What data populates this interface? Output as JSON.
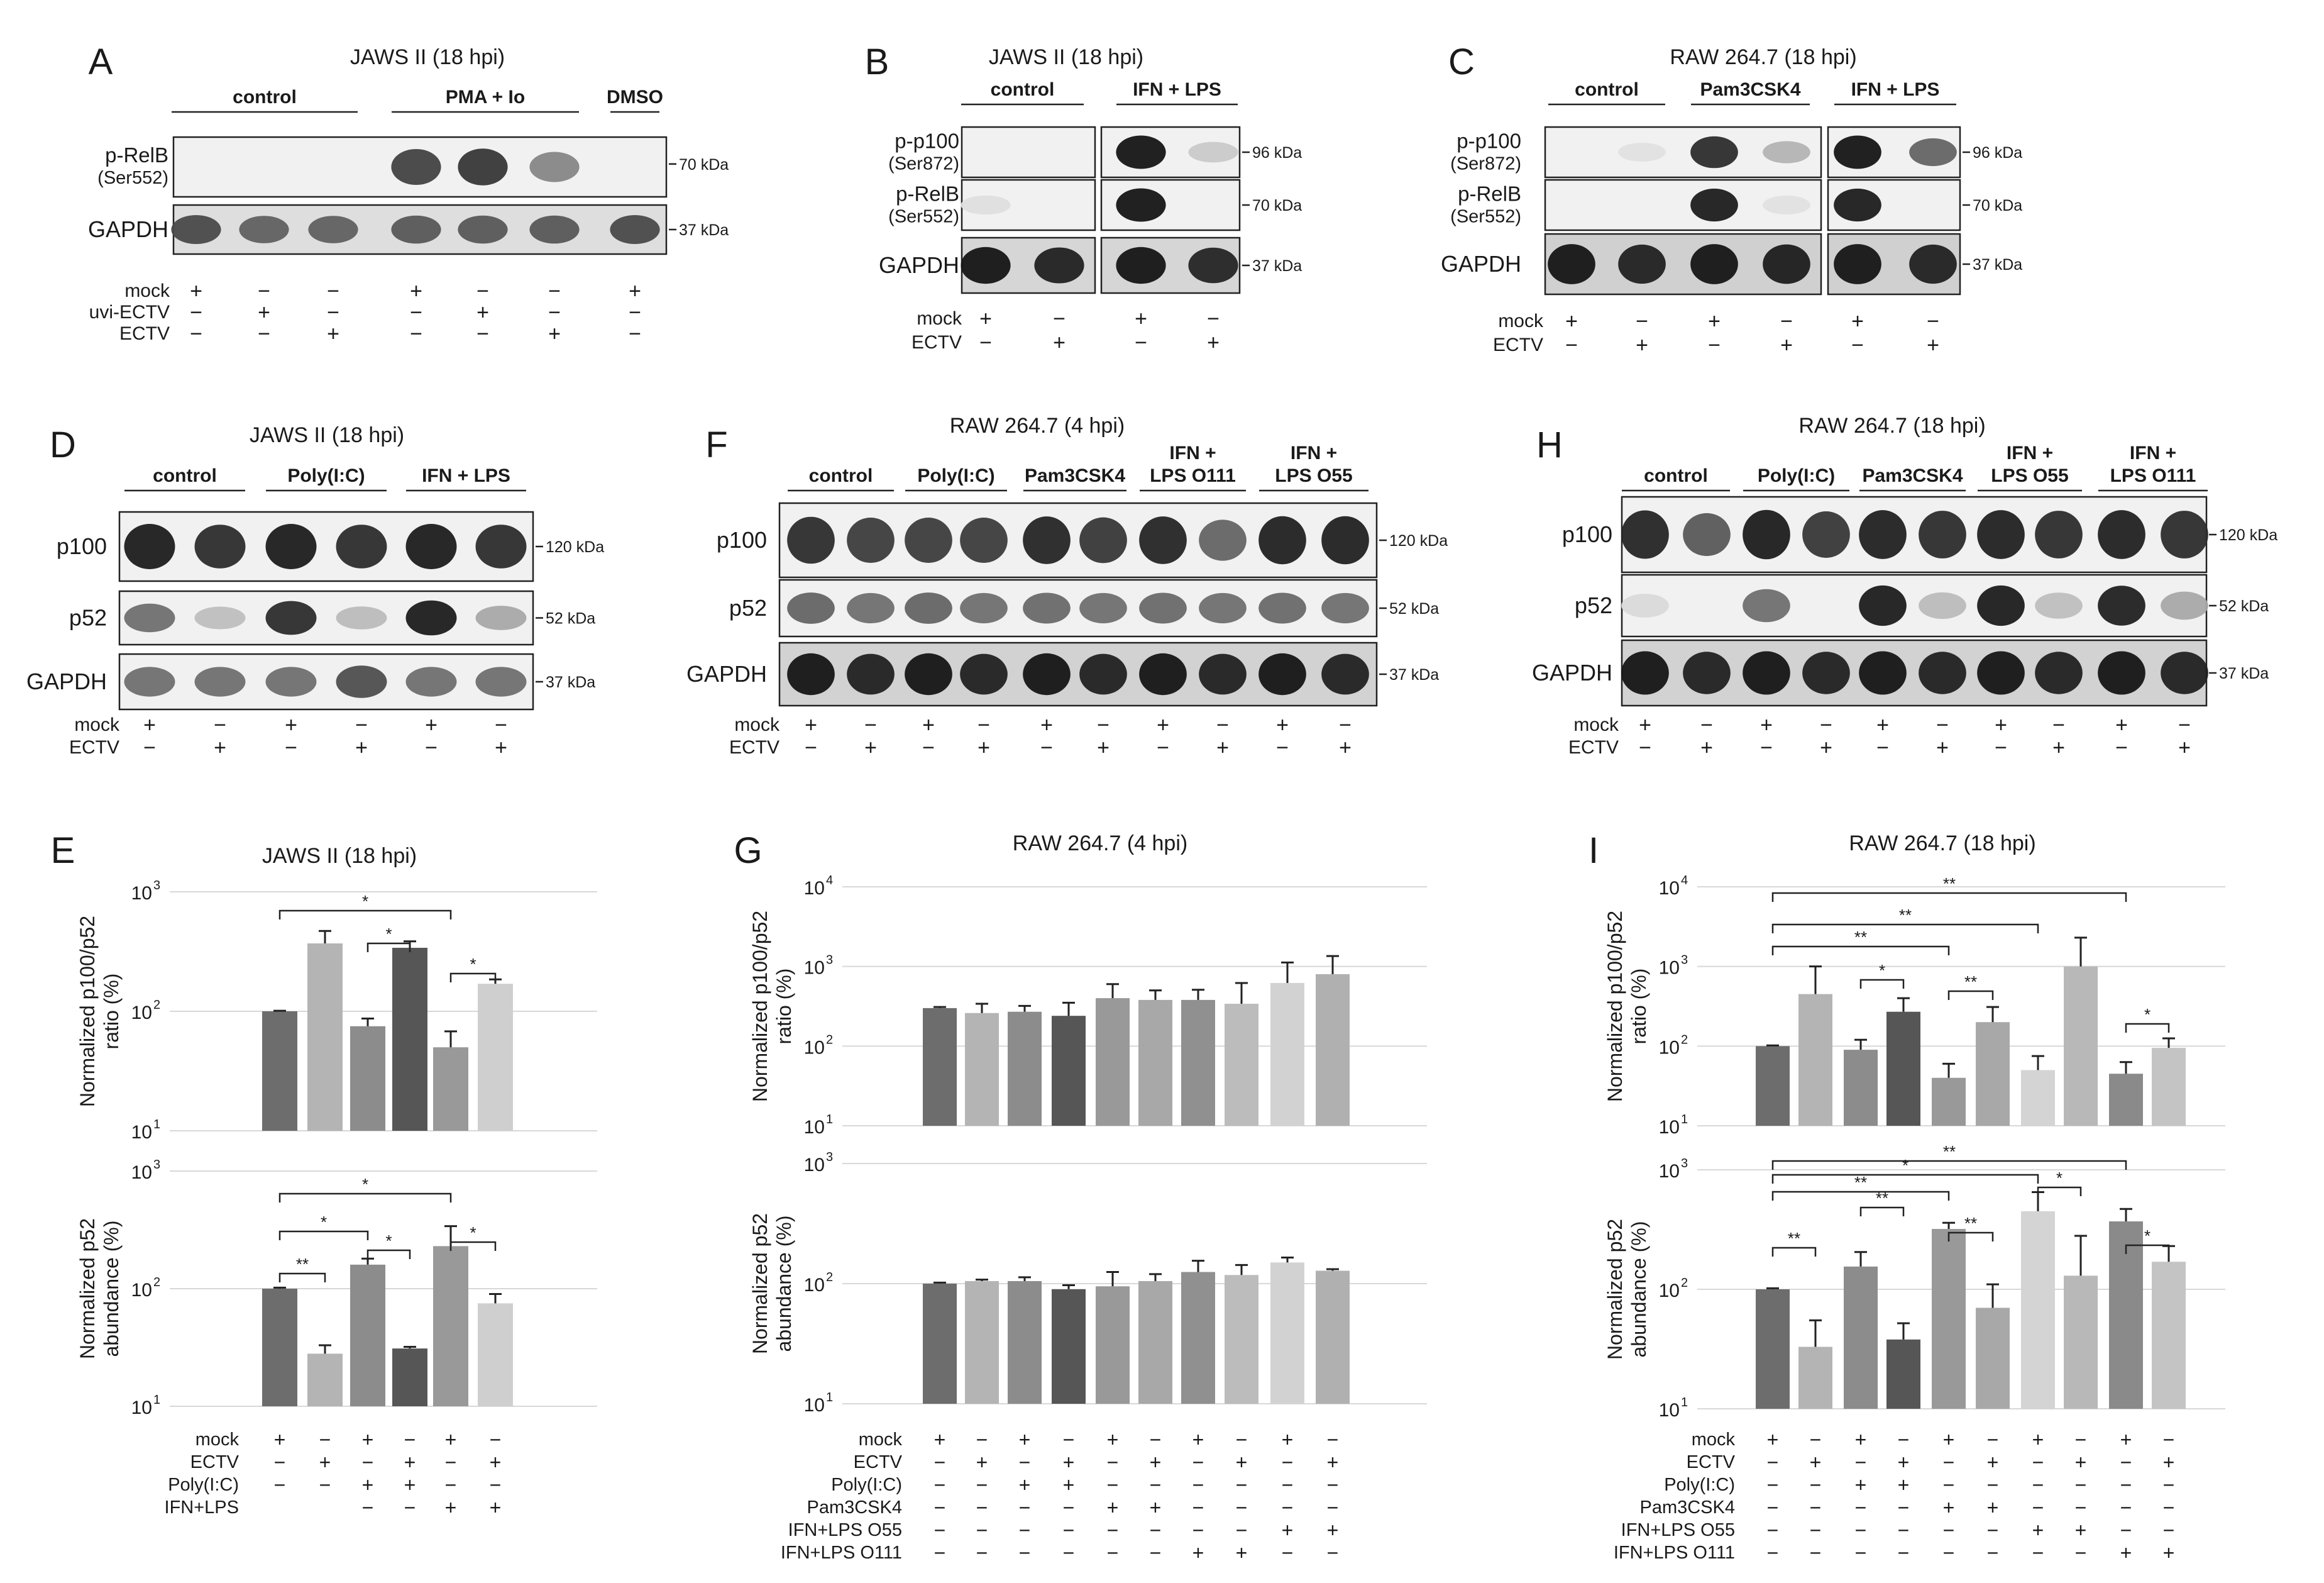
{
  "figure": {
    "panel_letters": [
      "A",
      "B",
      "C",
      "D",
      "E",
      "F",
      "G",
      "H",
      "I"
    ],
    "blots": {
      "A": {
        "title": "JAWS II (18 hpi)",
        "groups": [
          "control",
          "PMA + Io",
          "DMSO"
        ],
        "rows": [
          {
            "name": "p-RelB",
            "sub": "(Ser552)",
            "kda": "70 kDa"
          },
          {
            "name": "GAPDH",
            "sub": "",
            "kda": "37 kDa"
          }
        ],
        "cond_labels": [
          "mock",
          "uvi-ECTV",
          "ECTV"
        ],
        "cond_signs": [
          [
            "+",
            "−",
            "−",
            "+",
            "−",
            "−",
            "+"
          ],
          [
            "−",
            "+",
            "−",
            "−",
            "+",
            "−",
            "−"
          ],
          [
            "−",
            "−",
            "+",
            "−",
            "−",
            "+",
            "−"
          ]
        ]
      },
      "B": {
        "title": "JAWS II (18 hpi)",
        "groups": [
          "control",
          "IFN + LPS"
        ],
        "rows": [
          {
            "name": "p-p100",
            "sub": "(Ser872)",
            "kda": "96 kDa"
          },
          {
            "name": "p-RelB",
            "sub": "(Ser552)",
            "kda": "70 kDa"
          },
          {
            "name": "GAPDH",
            "sub": "",
            "kda": "37 kDa"
          }
        ],
        "cond_labels": [
          "mock",
          "ECTV"
        ],
        "cond_signs": [
          [
            "+",
            "−",
            "+",
            "−"
          ],
          [
            "−",
            "+",
            "−",
            "+"
          ]
        ]
      },
      "C": {
        "title": "RAW 264.7 (18 hpi)",
        "groups": [
          "control",
          "Pam3CSK4",
          "IFN + LPS"
        ],
        "rows": [
          {
            "name": "p-p100",
            "sub": "(Ser872)",
            "kda": "96 kDa"
          },
          {
            "name": "p-RelB",
            "sub": "(Ser552)",
            "kda": "70 kDa"
          },
          {
            "name": "GAPDH",
            "sub": "",
            "kda": "37 kDa"
          }
        ],
        "cond_labels": [
          "mock",
          "ECTV"
        ],
        "cond_signs": [
          [
            "+",
            "−",
            "+",
            "−",
            "+",
            "−"
          ],
          [
            "−",
            "+",
            "−",
            "+",
            "−",
            "+"
          ]
        ]
      },
      "D": {
        "title": "JAWS II (18 hpi)",
        "groups": [
          "control",
          "Poly(I:C)",
          "IFN + LPS"
        ],
        "rows": [
          {
            "name": "p100",
            "kda": "120 kDa"
          },
          {
            "name": "p52",
            "kda": "52 kDa"
          },
          {
            "name": "GAPDH",
            "kda": "37 kDa"
          }
        ],
        "cond_labels": [
          "mock",
          "ECTV"
        ],
        "cond_signs": [
          [
            "+",
            "−",
            "+",
            "−",
            "+",
            "−"
          ],
          [
            "−",
            "+",
            "−",
            "+",
            "−",
            "+"
          ]
        ]
      },
      "F": {
        "title": "RAW 264.7 (4 hpi)",
        "groups": [
          "control",
          "Poly(I:C)",
          "Pam3CSK4",
          "IFN + LPS O111",
          "IFN + LPS O55"
        ],
        "group_line1": [
          "",
          "",
          "",
          "IFN +",
          "IFN +"
        ],
        "group_line2": [
          "control",
          "Poly(I:C)",
          "Pam3CSK4",
          "LPS O111",
          "LPS O55"
        ],
        "rows": [
          {
            "name": "p100",
            "kda": "120 kDa"
          },
          {
            "name": "p52",
            "kda": "52 kDa"
          },
          {
            "name": "GAPDH",
            "kda": "37 kDa"
          }
        ],
        "cond_labels": [
          "mock",
          "ECTV"
        ],
        "cond_signs": [
          [
            "+",
            "−",
            "+",
            "−",
            "+",
            "−",
            "+",
            "−",
            "+",
            "−"
          ],
          [
            "−",
            "+",
            "−",
            "+",
            "−",
            "+",
            "−",
            "+",
            "−",
            "+"
          ]
        ]
      },
      "H": {
        "title": "RAW 264.7 (18 hpi)",
        "group_line1": [
          "",
          "",
          "",
          "IFN +",
          "IFN +"
        ],
        "group_line2": [
          "control",
          "Poly(I:C)",
          "Pam3CSK4",
          "LPS O55",
          "LPS O111"
        ],
        "rows": [
          {
            "name": "p100",
            "kda": "120 kDa"
          },
          {
            "name": "p52",
            "kda": "52 kDa"
          },
          {
            "name": "GAPDH",
            "kda": "37 kDa"
          }
        ],
        "cond_labels": [
          "mock",
          "ECTV"
        ],
        "cond_signs": [
          [
            "+",
            "−",
            "+",
            "−",
            "+",
            "−",
            "+",
            "−",
            "+",
            "−"
          ],
          [
            "−",
            "+",
            "−",
            "+",
            "−",
            "+",
            "−",
            "+",
            "−",
            "+"
          ]
        ]
      }
    },
    "conditions": {
      "E": {
        "labels": [
          "mock",
          "ECTV",
          "Poly(I:C)",
          "IFN+LPS"
        ],
        "signs": [
          [
            "+",
            "−",
            "+",
            "−",
            "+",
            "−"
          ],
          [
            "−",
            "+",
            "−",
            "+",
            "−",
            "+"
          ],
          [
            "−",
            "−",
            "+",
            "+",
            "−",
            "−"
          ],
          [
            "",
            "",
            "−",
            "−",
            "+",
            "+"
          ]
        ]
      },
      "G": {
        "labels": [
          "mock",
          "ECTV",
          "Poly(I:C)",
          "Pam3CSK4",
          "IFN+LPS O55",
          "IFN+LPS O111"
        ],
        "signs": [
          [
            "+",
            "−",
            "+",
            "−",
            "+",
            "−",
            "+",
            "−",
            "+",
            "−"
          ],
          [
            "−",
            "+",
            "−",
            "+",
            "−",
            "+",
            "−",
            "+",
            "−",
            "+"
          ],
          [
            "−",
            "−",
            "+",
            "+",
            "−",
            "−",
            "−",
            "−",
            "−",
            "−"
          ],
          [
            "−",
            "−",
            "−",
            "−",
            "+",
            "+",
            "−",
            "−",
            "−",
            "−"
          ],
          [
            "−",
            "−",
            "−",
            "−",
            "−",
            "−",
            "−",
            "−",
            "+",
            "+"
          ],
          [
            "−",
            "−",
            "−",
            "−",
            "−",
            "−",
            "+",
            "+",
            "−",
            "−"
          ]
        ]
      },
      "I": {
        "labels": [
          "mock",
          "ECTV",
          "Poly(I:C)",
          "Pam3CSK4",
          "IFN+LPS O55",
          "IFN+LPS O111"
        ],
        "signs": [
          [
            "+",
            "−",
            "+",
            "−",
            "+",
            "−",
            "+",
            "−",
            "+",
            "−"
          ],
          [
            "−",
            "+",
            "−",
            "+",
            "−",
            "+",
            "−",
            "+",
            "−",
            "+"
          ],
          [
            "−",
            "−",
            "+",
            "+",
            "−",
            "−",
            "−",
            "−",
            "−",
            "−"
          ],
          [
            "−",
            "−",
            "−",
            "−",
            "+",
            "+",
            "−",
            "−",
            "−",
            "−"
          ],
          [
            "−",
            "−",
            "−",
            "−",
            "−",
            "−",
            "+",
            "+",
            "−",
            "−"
          ],
          [
            "−",
            "−",
            "−",
            "−",
            "−",
            "−",
            "−",
            "−",
            "+",
            "+"
          ]
        ]
      }
    }
  },
  "chart_data": [
    {
      "panel": "E",
      "type": "bar",
      "title": "JAWS II (18 hpi)",
      "yscale": "log",
      "subplots": [
        {
          "ylabel": [
            "Normalized p100/p52",
            "ratio (%)"
          ],
          "ylim": [
            10,
            1000
          ],
          "ytick_base": [
            "10",
            "10",
            "10"
          ],
          "ytick_exp": [
            "1",
            "2",
            "3"
          ],
          "values": [
            100,
            370,
            75,
            340,
            50,
            170
          ],
          "errors": [
            1,
            100,
            12,
            45,
            18,
            15
          ],
          "significance": [
            {
              "label": "*",
              "from": 0,
              "to": 4
            },
            {
              "label": "*",
              "from": 2,
              "to": 3
            },
            {
              "label": "*",
              "from": 4,
              "to": 5
            }
          ]
        },
        {
          "ylabel": [
            "Normalized p52",
            "abundance (%)"
          ],
          "ylim": [
            10,
            1000
          ],
          "ytick_base": [
            "10",
            "10",
            "10"
          ],
          "ytick_exp": [
            "1",
            "2",
            "3"
          ],
          "values": [
            100,
            28,
            160,
            31,
            230,
            75
          ],
          "errors": [
            2,
            5,
            20,
            1,
            110,
            15
          ],
          "significance": [
            {
              "label": "*",
              "from": 0,
              "to": 4
            },
            {
              "label": "*",
              "from": 0,
              "to": 2
            },
            {
              "label": "*",
              "from": 2,
              "to": 3
            },
            {
              "label": "**",
              "from": 0,
              "to": 1
            },
            {
              "label": "*",
              "from": 4,
              "to": 5
            }
          ]
        }
      ],
      "colors": [
        "#6d6d6d",
        "#b4b4b4",
        "#8c8c8c",
        "#565656",
        "#999999",
        "#cfcfcf"
      ]
    },
    {
      "panel": "G",
      "type": "bar",
      "title": "RAW 264.7 (4 hpi)",
      "yscale": "log",
      "subplots": [
        {
          "ylabel": [
            "Normalized p100/p52",
            "ratio (%)"
          ],
          "ylim": [
            10,
            10000
          ],
          "ytick_base": [
            "10",
            "10",
            "10",
            "10"
          ],
          "ytick_exp": [
            "1",
            "2",
            "3",
            "4"
          ],
          "values": [
            300,
            260,
            270,
            240,
            400,
            380,
            380,
            340,
            620,
            800
          ],
          "errors": [
            10,
            80,
            50,
            110,
            200,
            120,
            130,
            280,
            500,
            550
          ],
          "significance": []
        },
        {
          "ylabel": [
            "Normalized p52",
            "abundance (%)"
          ],
          "ylim": [
            10,
            1000
          ],
          "ytick_base": [
            "10",
            "10",
            "10"
          ],
          "ytick_exp": [
            "1",
            "2",
            "3"
          ],
          "values": [
            100,
            105,
            105,
            90,
            95,
            105,
            125,
            118,
            150,
            128
          ],
          "errors": [
            2,
            3,
            8,
            7,
            30,
            15,
            30,
            25,
            15,
            4
          ],
          "significance": []
        }
      ],
      "colors": [
        "#6d6d6d",
        "#b4b4b4",
        "#8c8c8c",
        "#565656",
        "#999999",
        "#a8a8a8",
        "#909090",
        "#bcbcbc",
        "#d2d2d2",
        "#b0b0b0"
      ]
    },
    {
      "panel": "I",
      "type": "bar",
      "title": "RAW 264.7 (18 hpi)",
      "yscale": "log",
      "subplots": [
        {
          "ylabel": [
            "Normalized p100/p52",
            "ratio (%)"
          ],
          "ylim": [
            10,
            10000
          ],
          "ytick_base": [
            "10",
            "10",
            "10",
            "10"
          ],
          "ytick_exp": [
            "1",
            "2",
            "3",
            "4"
          ],
          "values": [
            100,
            450,
            90,
            270,
            40,
            200,
            50,
            1000,
            45,
            95
          ],
          "errors": [
            2,
            550,
            30,
            130,
            20,
            110,
            25,
            1300,
            18,
            30
          ],
          "significance": [
            {
              "label": "**",
              "from": 0,
              "to": 8
            },
            {
              "label": "**",
              "from": 0,
              "to": 6
            },
            {
              "label": "**",
              "from": 0,
              "to": 4
            },
            {
              "label": "*",
              "from": 2,
              "to": 3
            },
            {
              "label": "**",
              "from": 4,
              "to": 5
            },
            {
              "label": "*",
              "from": 8,
              "to": 9
            }
          ]
        },
        {
          "ylabel": [
            "Normalized p52",
            "abundance (%)"
          ],
          "ylim": [
            10,
            1000
          ],
          "ytick_base": [
            "10",
            "10",
            "10"
          ],
          "ytick_exp": [
            "1",
            "2",
            "3"
          ],
          "values": [
            100,
            33,
            155,
            38,
            320,
            70,
            450,
            130,
            370,
            170
          ],
          "errors": [
            2,
            22,
            50,
            14,
            40,
            40,
            200,
            150,
            100,
            60
          ],
          "significance": [
            {
              "label": "**",
              "from": 0,
              "to": 8
            },
            {
              "label": "*",
              "from": 0,
              "to": 6
            },
            {
              "label": "**",
              "from": 0,
              "to": 4
            },
            {
              "label": "**",
              "from": 0,
              "to": 1
            },
            {
              "label": "**",
              "from": 2,
              "to": 3
            },
            {
              "label": "**",
              "from": 4,
              "to": 5
            },
            {
              "label": "*",
              "from": 6,
              "to": 7
            },
            {
              "label": "*",
              "from": 8,
              "to": 9
            }
          ]
        }
      ],
      "colors": [
        "#6d6d6d",
        "#b4b4b4",
        "#8c8c8c",
        "#565656",
        "#999999",
        "#a8a8a8",
        "#d4d4d4",
        "#b8b8b8",
        "#8a8a8a",
        "#c4c4c4"
      ]
    }
  ]
}
